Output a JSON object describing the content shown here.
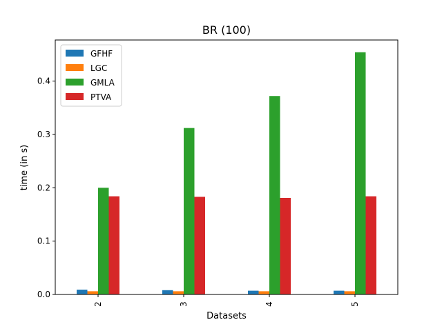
{
  "chart_data": {
    "type": "bar",
    "title": "BR (100)",
    "xlabel": "Datasets",
    "ylabel": "time (in s)",
    "categories": [
      "2",
      "3",
      "4",
      "5"
    ],
    "series": [
      {
        "name": "GFHF",
        "color": "#1f77b4",
        "values": [
          0.009,
          0.008,
          0.007,
          0.007
        ]
      },
      {
        "name": "LGC",
        "color": "#ff7f0e",
        "values": [
          0.006,
          0.006,
          0.006,
          0.006
        ]
      },
      {
        "name": "GMLA",
        "color": "#2ca02c",
        "values": [
          0.2,
          0.312,
          0.372,
          0.454
        ]
      },
      {
        "name": "PTVA",
        "color": "#d62728",
        "values": [
          0.184,
          0.183,
          0.181,
          0.184
        ]
      }
    ],
    "ylim": [
      0,
      0.477
    ],
    "yticks": [
      0.0,
      0.1,
      0.2,
      0.3,
      0.4
    ],
    "ytick_labels": [
      "0.0",
      "0.1",
      "0.2",
      "0.3",
      "0.4"
    ],
    "legend_position": "top-left",
    "grid": false
  }
}
